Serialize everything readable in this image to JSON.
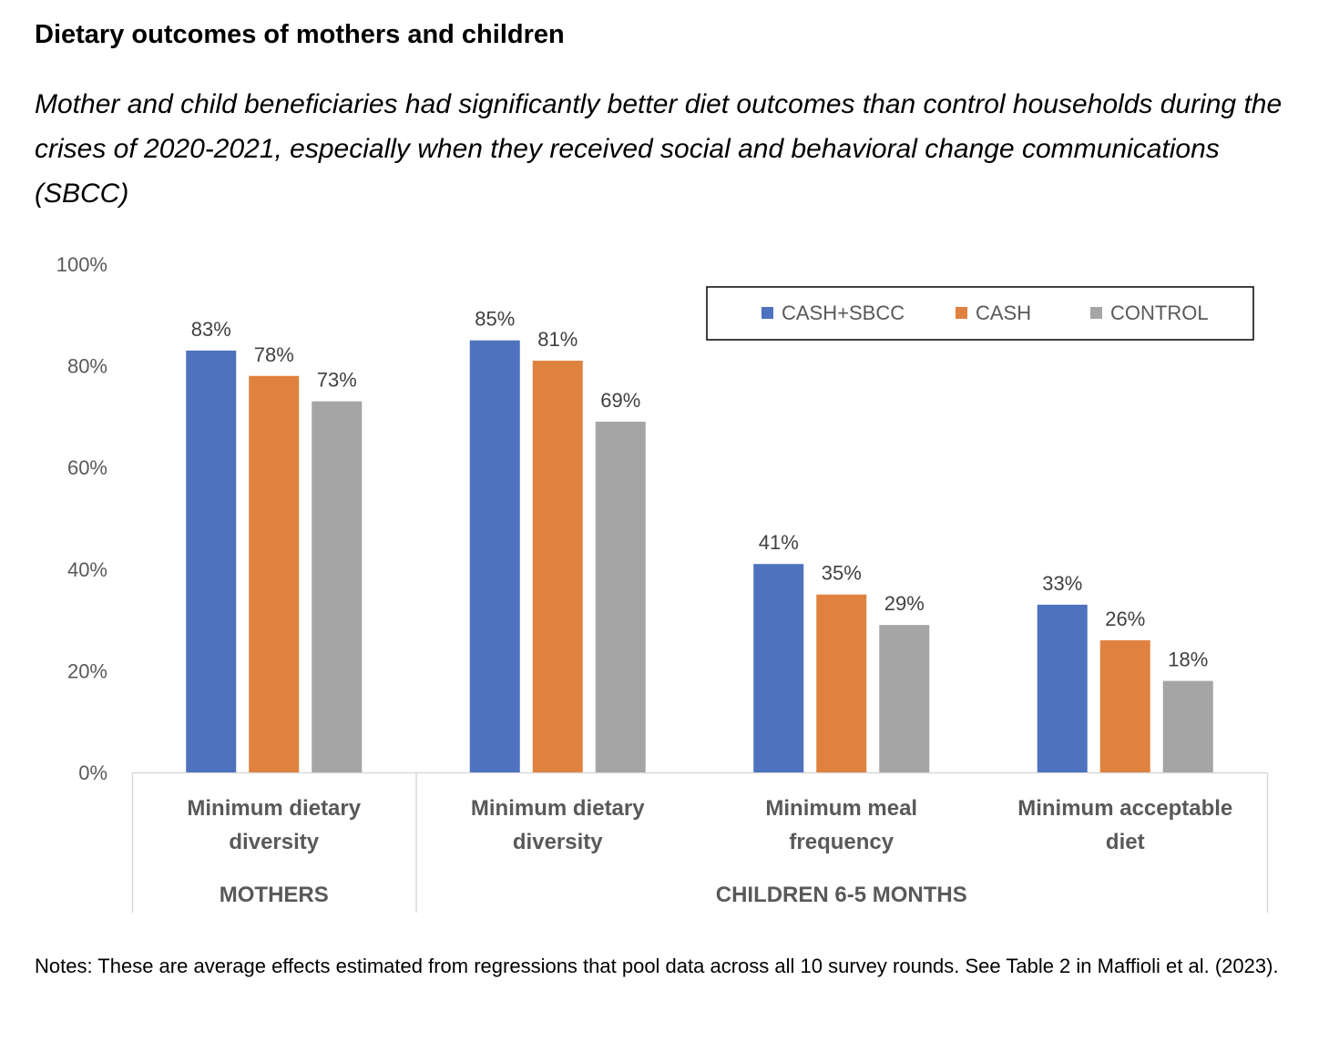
{
  "title": "Dietary outcomes of mothers and children",
  "subtitle": "Mother and child beneficiaries had significantly better diet outcomes than control households during the crises of 2020-2021, especially when they received social and behavioral change communications (SBCC)",
  "notes": "Notes: These are average effects estimated from regressions that pool data across all 10 survey rounds. See Table 2 in Maffioli et al. (2023).",
  "chart_data": {
    "type": "bar",
    "categories": [
      "Minimum dietary diversity",
      "Minimum dietary diversity",
      "Minimum meal frequency",
      "Minimum acceptable diet"
    ],
    "category_lines": [
      [
        "Minimum dietary",
        "diversity"
      ],
      [
        "Minimum dietary",
        "diversity"
      ],
      [
        "Minimum meal",
        "frequency"
      ],
      [
        "Minimum acceptable",
        "diet"
      ]
    ],
    "groups": [
      {
        "label": "MOTHERS",
        "categories": [
          0
        ]
      },
      {
        "label": "CHILDREN 6-5 MONTHS",
        "categories": [
          1,
          2,
          3
        ]
      }
    ],
    "series": [
      {
        "name": "CASH+SBCC",
        "color": "#4e72be",
        "values": [
          83,
          85,
          41,
          33
        ],
        "labels": [
          "83%",
          "85%",
          "41%",
          "33%"
        ]
      },
      {
        "name": "CASH",
        "color": "#e0823f",
        "values": [
          78,
          81,
          35,
          26
        ],
        "labels": [
          "78%",
          "81%",
          "35%",
          "26%"
        ]
      },
      {
        "name": "CONTROL",
        "color": "#a5a5a5",
        "values": [
          73,
          69,
          29,
          18
        ],
        "labels": [
          "73%",
          "69%",
          "29%",
          "18%"
        ]
      }
    ],
    "ylim": [
      0,
      100
    ],
    "yticks": [
      0,
      20,
      40,
      60,
      80,
      100
    ],
    "ytick_labels": [
      "0%",
      "20%",
      "40%",
      "60%",
      "80%",
      "100%"
    ],
    "grid": false,
    "legend_position": "top-right",
    "xlabel": "",
    "ylabel": ""
  }
}
